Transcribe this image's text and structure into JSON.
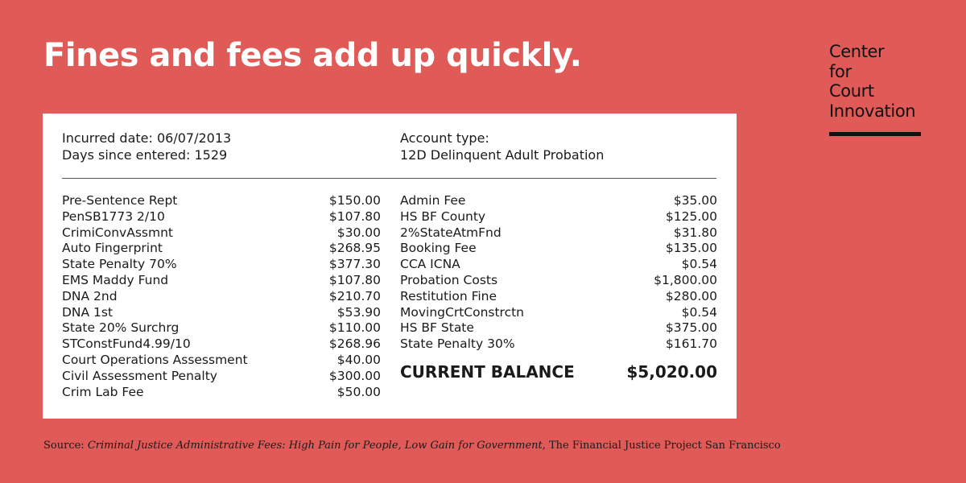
{
  "headline": "Fines and fees add up quickly.",
  "logo": {
    "lines": [
      "Center",
      "for",
      "Court",
      "Innovation"
    ]
  },
  "account": {
    "incurred_date": "Incurred date: 06/07/2013",
    "days_since_entered": "Days since entered: 1529",
    "account_type_label": "Account type:",
    "account_type_value": "12D Delinquent Adult Probation"
  },
  "fees_left": [
    {
      "name": "Pre-Sentence Rept",
      "amount": "$150.00"
    },
    {
      "name": "PenSB1773 2/10",
      "amount": "$107.80"
    },
    {
      "name": "CrimiConvAssmnt",
      "amount": "$30.00"
    },
    {
      "name": "Auto Fingerprint",
      "amount": "$268.95"
    },
    {
      "name": "State Penalty 70%",
      "amount": "$377.30"
    },
    {
      "name": "EMS Maddy Fund",
      "amount": "$107.80"
    },
    {
      "name": "DNA 2nd",
      "amount": "$210.70"
    },
    {
      "name": "DNA 1st",
      "amount": "$53.90"
    },
    {
      "name": "State 20% Surchrg",
      "amount": "$110.00"
    },
    {
      "name": "STConstFund4.99/10",
      "amount": "$268.96"
    },
    {
      "name": "Court Operations Assessment",
      "amount": "$40.00"
    },
    {
      "name": "Civil Assessment Penalty",
      "amount": "$300.00"
    },
    {
      "name": "Crim Lab Fee",
      "amount": "$50.00"
    }
  ],
  "fees_right": [
    {
      "name": "Admin Fee",
      "amount": "$35.00"
    },
    {
      "name": "HS BF County",
      "amount": "$125.00"
    },
    {
      "name": "2%StateAtmFnd",
      "amount": "$31.80"
    },
    {
      "name": "Booking Fee",
      "amount": "$135.00"
    },
    {
      "name": "CCA ICNA",
      "amount": "$0.54"
    },
    {
      "name": "Probation Costs",
      "amount": "$1,800.00"
    },
    {
      "name": "Restitution Fine",
      "amount": "$280.00"
    },
    {
      "name": "MovingCrtConstrctn",
      "amount": "$0.54"
    },
    {
      "name": "HS BF State",
      "amount": "$375.00"
    },
    {
      "name": "State Penalty 30%",
      "amount": "$161.70"
    }
  ],
  "balance": {
    "label": "CURRENT BALANCE",
    "amount": "$5,020.00"
  },
  "source": {
    "prefix": "Source: ",
    "title": "Criminal Justice Administrative Fees: High Pain for People, Low Gain for Government",
    "suffix": ", The Financial Justice Project San Francisco"
  }
}
